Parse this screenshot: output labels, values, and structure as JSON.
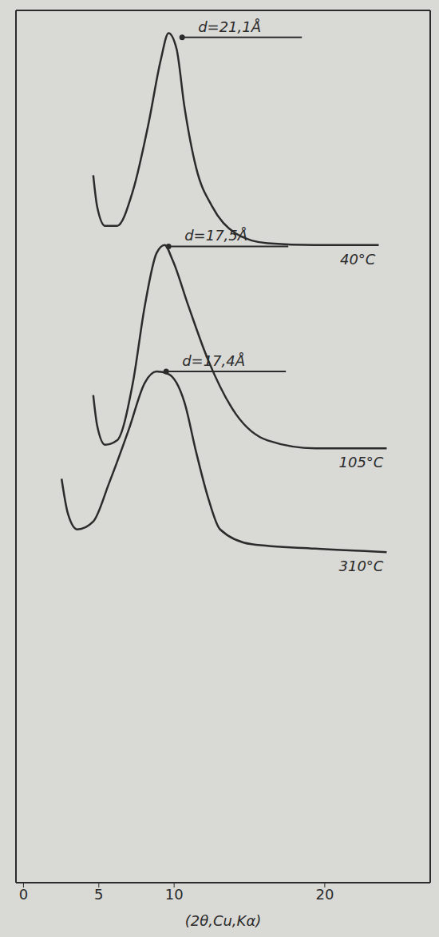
{
  "chart_data": {
    "type": "line",
    "x_label": "(2θ,Cu,Kα)",
    "xlim": [
      -0.5,
      27
    ],
    "xticks": [
      0,
      5,
      10,
      20
    ],
    "ylim": [
      0,
      100
    ],
    "tick_labels": "x",
    "grid": false,
    "series": [
      {
        "name": "40°C",
        "color": "#2b2b2b",
        "x": [
          4.63,
          4.89,
          5.42,
          6.21,
          7.26,
          8.32,
          9.11,
          9.63,
          10.16,
          10.68,
          11.47,
          12.53,
          14.11,
          16.21,
          19.37,
          23.58
        ],
        "values": [
          81.1,
          77.5,
          75.3,
          75.3,
          79.3,
          87.2,
          94.3,
          97.4,
          95.6,
          89.0,
          81.9,
          77.5,
          74.4,
          73.3,
          73.1,
          73.1
        ]
      },
      {
        "name": "105°C",
        "color": "#2b2b2b",
        "x": [
          4.63,
          4.89,
          5.42,
          6.21,
          7.26,
          8.05,
          8.84,
          9.37,
          9.89,
          10.95,
          12.26,
          14.11,
          16.21,
          19.37,
          24.11
        ],
        "values": [
          55.9,
          52.4,
          50.2,
          50.7,
          57.3,
          66.1,
          72.2,
          73.1,
          71.4,
          66.1,
          59.9,
          53.7,
          50.7,
          49.8,
          49.8
        ]
      },
      {
        "name": "310°C",
        "color": "#2b2b2b",
        "x": [
          2.53,
          2.95,
          3.58,
          4.63,
          5.68,
          7.0,
          8.05,
          8.84,
          9.63,
          10.68,
          11.47,
          12.26,
          13.05,
          15.16,
          19.37,
          24.11
        ],
        "values": [
          46.3,
          42.3,
          40.5,
          41.4,
          45.8,
          52.0,
          57.3,
          58.6,
          58.3,
          55.1,
          49.3,
          44.1,
          40.5,
          38.8,
          38.3,
          37.9
        ]
      }
    ],
    "annotations": [
      {
        "text": "d=21,1Å",
        "x": 10.53,
        "y": 96.9
      },
      {
        "text": "d=17,5Å",
        "x": 9.63,
        "y": 72.95
      },
      {
        "text": "d=17,4Å",
        "x": 9.47,
        "y": 58.6
      }
    ]
  }
}
